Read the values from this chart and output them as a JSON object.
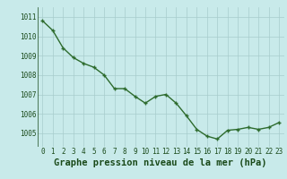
{
  "x": [
    0,
    1,
    2,
    3,
    4,
    5,
    6,
    7,
    8,
    9,
    10,
    11,
    12,
    13,
    14,
    15,
    16,
    17,
    18,
    19,
    20,
    21,
    22,
    23
  ],
  "y": [
    1010.8,
    1010.3,
    1009.4,
    1008.9,
    1008.6,
    1008.4,
    1008.0,
    1007.3,
    1007.3,
    1006.9,
    1006.55,
    1006.9,
    1007.0,
    1006.55,
    1005.9,
    1005.2,
    1004.85,
    1004.7,
    1005.15,
    1005.2,
    1005.3,
    1005.2,
    1005.3,
    1005.55
  ],
  "line_color": "#2d6b2d",
  "marker_color": "#2d6b2d",
  "bg_color": "#c8eaea",
  "grid_color": "#a8cccc",
  "text_color": "#1a4a1a",
  "xlabel": "Graphe pression niveau de la mer (hPa)",
  "yticks": [
    1005,
    1006,
    1007,
    1008,
    1009,
    1010,
    1011
  ],
  "xticks": [
    0,
    1,
    2,
    3,
    4,
    5,
    6,
    7,
    8,
    9,
    10,
    11,
    12,
    13,
    14,
    15,
    16,
    17,
    18,
    19,
    20,
    21,
    22,
    23
  ],
  "ylim": [
    1004.3,
    1011.5
  ],
  "xlim": [
    -0.5,
    23.5
  ],
  "tick_fontsize": 5.5,
  "xlabel_fontsize": 7.5
}
